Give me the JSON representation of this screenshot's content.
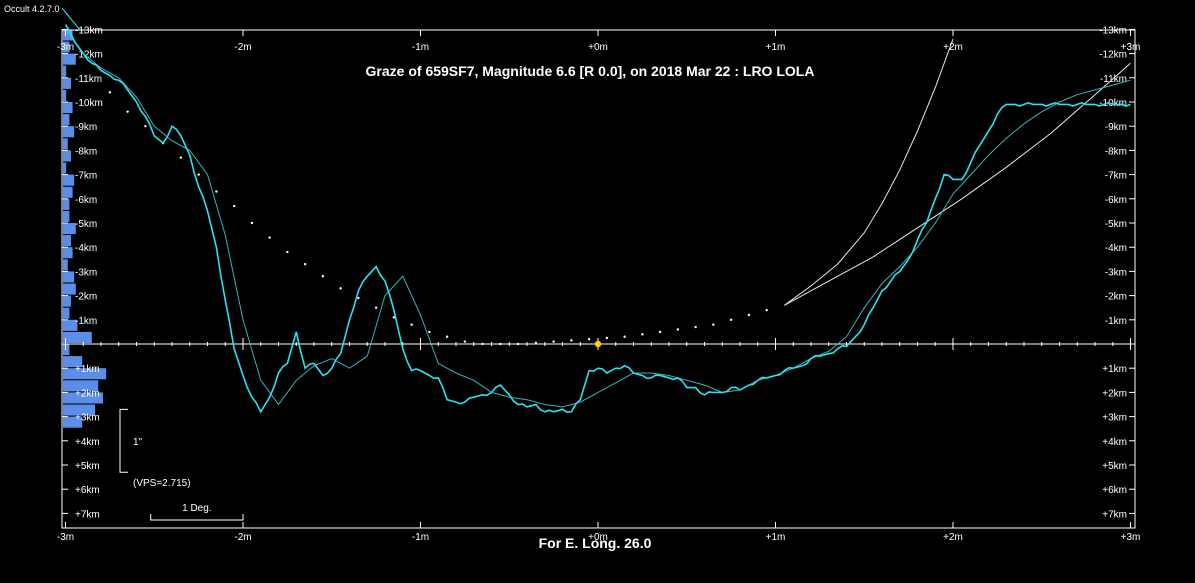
{
  "app": {
    "version": "Occult 4.2.7.0"
  },
  "colors": {
    "background": "#000000",
    "axis": "#ffffff",
    "profile": "#29e3f0",
    "histogram": "#5a8ee8",
    "star": "#ffd700",
    "limb_dots": "#ffffff"
  },
  "chart_data": {
    "type": "line",
    "title": "Graze of  659SF7,  Magnitude 6.6 [R 0.0],  on 2018 Mar 22  :  LRO LOLA",
    "footer": "For E. Long. 26.0",
    "xlim": [
      -3,
      3
    ],
    "ylim": [
      -13,
      7.5
    ],
    "x_ticks": [
      -3,
      -2,
      -1,
      0,
      1,
      2,
      3
    ],
    "x_tick_labels": [
      "-3m",
      "-2m",
      "-1m",
      "+0m",
      "+1m",
      "+2m",
      "+3m"
    ],
    "y_ticks": [
      -13,
      -12,
      -11,
      -10,
      -9,
      -8,
      -7,
      -6,
      -5,
      -4,
      -3,
      -2,
      -1,
      1,
      2,
      3,
      4,
      5,
      6,
      7
    ],
    "y_tick_labels": [
      "-13km",
      "-12km",
      "-11km",
      "-10km",
      "-9km",
      "-8km",
      "-7km",
      "-6km",
      "-5km",
      "-4km",
      "-3km",
      "-2km",
      "-1km",
      "+1km",
      "+2km",
      "+3km",
      "+4km",
      "+5km",
      "+6km",
      "+7km"
    ],
    "scale_bar": {
      "label": "1\"",
      "km_top": 2.7,
      "km_bottom": 5.3
    },
    "vps_label": "(VPS=2.715)",
    "deg_bar": {
      "label": "1 Deg.",
      "x_start": -2.52,
      "x_end": -2.0
    },
    "star": {
      "x": 0,
      "y": 0
    },
    "series": [
      {
        "role": "lunar-profile-detail",
        "x": [
          -3.0,
          -2.95,
          -2.9,
          -2.85,
          -2.8,
          -2.75,
          -2.7,
          -2.65,
          -2.6,
          -2.55,
          -2.5,
          -2.45,
          -2.4,
          -2.35,
          -2.3,
          -2.25,
          -2.2,
          -2.15,
          -2.1,
          -2.05,
          -2.0,
          -1.95,
          -1.9,
          -1.85,
          -1.8,
          -1.75,
          -1.7,
          -1.65,
          -1.6,
          -1.55,
          -1.5,
          -1.45,
          -1.4,
          -1.35,
          -1.3,
          -1.25,
          -1.2,
          -1.15,
          -1.1,
          -1.05,
          -1.0,
          -0.95,
          -0.9,
          -0.85,
          -0.8,
          -0.75,
          -0.7,
          -0.65,
          -0.6,
          -0.55,
          -0.5,
          -0.45,
          -0.4,
          -0.35,
          -0.3,
          -0.25,
          -0.2,
          -0.15,
          -0.1,
          -0.05,
          0.0,
          0.05,
          0.1,
          0.15,
          0.2,
          0.25,
          0.3,
          0.35,
          0.4,
          0.45,
          0.5,
          0.55,
          0.6,
          0.65,
          0.7,
          0.75,
          0.8,
          0.85,
          0.9,
          0.95,
          1.0,
          1.05,
          1.1,
          1.15,
          1.2,
          1.25,
          1.3,
          1.35,
          1.4,
          1.45,
          1.5,
          1.55,
          1.6,
          1.65,
          1.7,
          1.75,
          1.8,
          1.85,
          1.9,
          1.95,
          2.0,
          2.05,
          2.1,
          2.15,
          2.2,
          2.25,
          2.3,
          2.35,
          2.4,
          2.45,
          2.5,
          2.55,
          2.6,
          2.65,
          2.7,
          2.75,
          2.8,
          2.85,
          2.9,
          2.95,
          3.0
        ],
        "y": [
          -13.2,
          -12.5,
          -12.0,
          -11.6,
          -11.3,
          -11.1,
          -10.9,
          -10.5,
          -10.0,
          -9.4,
          -8.6,
          -8.3,
          -9.0,
          -8.6,
          -7.8,
          -6.5,
          -5.5,
          -4.0,
          -1.8,
          0.2,
          1.3,
          2.2,
          2.8,
          2.2,
          1.2,
          0.8,
          -0.5,
          1.0,
          0.8,
          1.3,
          1.0,
          0.4,
          -1.0,
          -2.2,
          -2.8,
          -3.2,
          -2.6,
          -1.4,
          0.2,
          1.1,
          1.1,
          1.3,
          1.4,
          2.3,
          2.4,
          2.4,
          2.2,
          2.1,
          2.0,
          1.7,
          2.1,
          2.5,
          2.6,
          2.5,
          2.8,
          2.8,
          2.7,
          2.8,
          2.3,
          1.1,
          1.0,
          1.2,
          1.0,
          0.9,
          1.2,
          1.3,
          1.4,
          1.3,
          1.4,
          1.4,
          1.8,
          1.8,
          2.1,
          2.0,
          2.0,
          1.8,
          1.9,
          1.7,
          1.5,
          1.4,
          1.3,
          1.1,
          1.0,
          0.9,
          0.6,
          0.5,
          0.4,
          0.2,
          0.1,
          -0.3,
          -0.8,
          -1.5,
          -2.2,
          -2.6,
          -3.0,
          -3.5,
          -4.3,
          -5.0,
          -6.0,
          -7.0,
          -6.8,
          -6.8,
          -7.5,
          -8.2,
          -8.8,
          -9.5,
          -9.9,
          -9.9,
          -9.9,
          -9.9,
          -9.9,
          -9.9,
          -9.9,
          -9.9,
          -9.9,
          -9.9,
          -9.9,
          -9.9,
          -9.9,
          -9.9,
          -9.9
        ]
      },
      {
        "role": "lunar-profile-smooth",
        "x": [
          -3.0,
          -2.9,
          -2.8,
          -2.7,
          -2.6,
          -2.5,
          -2.4,
          -2.3,
          -2.2,
          -2.1,
          -2.0,
          -1.9,
          -1.8,
          -1.7,
          -1.6,
          -1.5,
          -1.4,
          -1.3,
          -1.2,
          -1.1,
          -1.0,
          -0.9,
          -0.8,
          -0.7,
          -0.6,
          -0.5,
          -0.4,
          -0.3,
          -0.2,
          -0.1,
          0.0,
          0.1,
          0.2,
          0.3,
          0.4,
          0.5,
          0.6,
          0.7,
          0.8,
          0.9,
          1.0,
          1.1,
          1.2,
          1.3,
          1.4,
          1.5,
          1.6,
          1.7,
          1.8,
          1.9,
          2.0,
          2.1,
          2.2,
          2.3,
          2.4,
          2.5,
          2.6,
          2.7,
          2.8,
          2.9,
          3.0
        ],
        "y": [
          -13.0,
          -12.0,
          -11.4,
          -11.0,
          -10.2,
          -9.0,
          -8.4,
          -8.0,
          -7.0,
          -4.5,
          -1.0,
          1.5,
          2.5,
          1.5,
          0.9,
          0.6,
          1.0,
          0.5,
          -2.0,
          -2.8,
          -1.2,
          0.8,
          1.2,
          1.5,
          2.0,
          2.2,
          2.3,
          2.5,
          2.6,
          2.4,
          2.0,
          1.6,
          1.2,
          1.2,
          1.3,
          1.5,
          1.7,
          2.0,
          1.9,
          1.5,
          1.3,
          1.0,
          0.6,
          0.3,
          -0.3,
          -1.5,
          -2.5,
          -3.2,
          -4.0,
          -5.0,
          -6.2,
          -7.0,
          -7.8,
          -8.5,
          -9.1,
          -9.6,
          -10.0,
          -10.3,
          -10.5,
          -10.7,
          -10.9
        ]
      },
      {
        "role": "predicted-limb-dots",
        "x": [
          -2.75,
          -2.65,
          -2.55,
          -2.45,
          -2.35,
          -2.25,
          -2.15,
          -2.05,
          -1.95,
          -1.85,
          -1.75,
          -1.65,
          -1.55,
          -1.45,
          -1.35,
          -1.25,
          -1.15,
          -1.05,
          -0.95,
          -0.85,
          -0.75,
          -0.65,
          -0.55,
          -0.45,
          -0.35,
          -0.25,
          -0.15,
          -0.05,
          0.05,
          0.15,
          0.25,
          0.35,
          0.45,
          0.55,
          0.65,
          0.75,
          0.85,
          0.95
        ],
        "y": [
          -10.4,
          -9.6,
          -9.0,
          -8.3,
          -7.7,
          -7.0,
          -6.3,
          -5.7,
          -5.0,
          -4.4,
          -3.8,
          -3.3,
          -2.8,
          -2.3,
          -1.9,
          -1.5,
          -1.1,
          -0.8,
          -0.5,
          -0.3,
          -0.1,
          0.0,
          0.0,
          0.0,
          -0.05,
          -0.1,
          -0.15,
          -0.2,
          -0.25,
          -0.3,
          -0.4,
          -0.5,
          -0.6,
          -0.7,
          -0.8,
          -1.0,
          -1.2,
          -1.4
        ]
      },
      {
        "role": "limit-curve-1",
        "x": [
          1.05,
          1.2,
          1.35,
          1.5,
          1.6,
          1.7,
          1.8,
          1.9,
          2.0
        ],
        "y": [
          -1.6,
          -2.4,
          -3.3,
          -4.6,
          -5.8,
          -7.2,
          -8.8,
          -10.6,
          -12.6
        ]
      },
      {
        "role": "limit-curve-2",
        "x": [
          1.05,
          1.3,
          1.55,
          1.8,
          2.05,
          2.3,
          2.55,
          2.8,
          3.0
        ],
        "y": [
          -1.6,
          -2.6,
          -3.6,
          -4.8,
          -6.0,
          -7.3,
          -8.7,
          -10.3,
          -11.6
        ]
      }
    ],
    "histogram": {
      "y_bins": [
        -13,
        -12.5,
        -12,
        -11.5,
        -11,
        -10.5,
        -10,
        -9.5,
        -9,
        -8.5,
        -8,
        -7.5,
        -7,
        -6.5,
        -6,
        -5.5,
        -5,
        -4.5,
        -4,
        -3.5,
        -3,
        -2.5,
        -2,
        -1.5,
        -1,
        -0.5,
        0,
        0.5,
        1,
        1.5,
        2,
        2.5,
        3
      ],
      "counts": [
        6,
        4,
        8,
        2,
        5,
        2,
        6,
        4,
        7,
        3,
        5,
        2,
        7,
        6,
        4,
        4,
        8,
        5,
        6,
        3,
        7,
        8,
        5,
        4,
        9,
        18,
        4,
        12,
        27,
        22,
        25,
        20,
        12
      ]
    }
  }
}
